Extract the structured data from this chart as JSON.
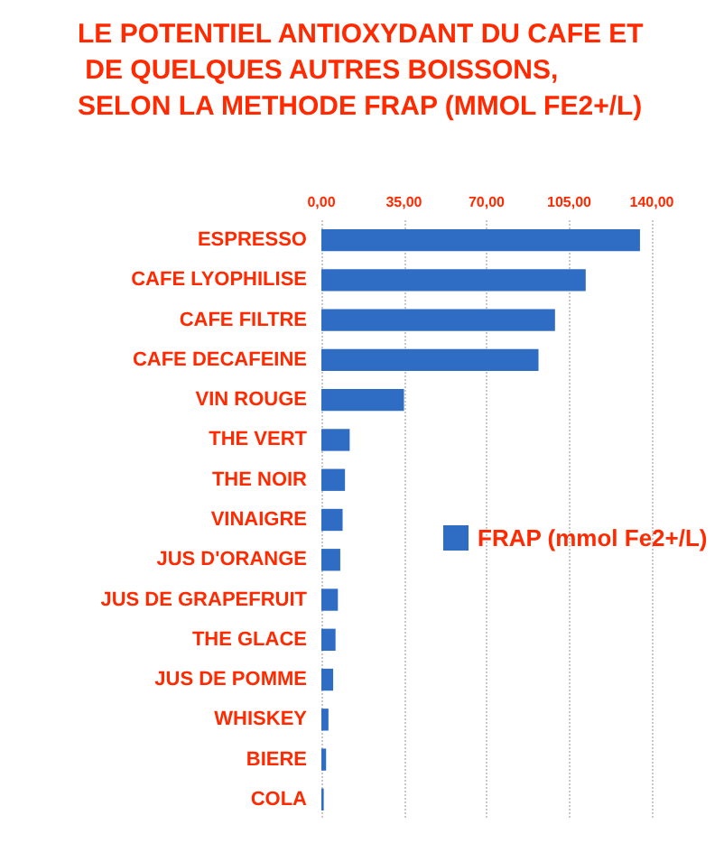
{
  "chart_data": {
    "type": "bar",
    "orientation": "horizontal",
    "title": "LE POTENTIEL ANTIOXYDANT DU CAFE ET DE QUELQUES AUTRES BOISSONS, SELON LA METHODE FRAP (MMOL FE2+/L)",
    "categories": [
      "ESPRESSO",
      "CAFE LYOPHILISE",
      "CAFE FILTRE",
      "CAFE DECAFEINE",
      "VIN ROUGE",
      "THE VERT",
      "THE NOIR",
      "VINAIGRE",
      "JUS D'ORANGE",
      "JUS DE GRAPEFRUIT",
      "THE GLACE",
      "JUS DE POMME",
      "WHISKEY",
      "BIERE",
      "COLA"
    ],
    "series": [
      {
        "name": "FRAP (mmol Fe2+/L)",
        "color": "#2f6cc4",
        "values": [
          135,
          112,
          99,
          92,
          35,
          12,
          10,
          9,
          8,
          7,
          6,
          5,
          3,
          2,
          1
        ]
      }
    ],
    "xlim": [
      0,
      140
    ],
    "xticks": [
      {
        "value": 0,
        "label": "0,00"
      },
      {
        "value": 35,
        "label": "35,00"
      },
      {
        "value": 70,
        "label": "70,00"
      },
      {
        "value": 105,
        "label": "105,00"
      },
      {
        "value": 140,
        "label": "140,00"
      }
    ],
    "grid": "x",
    "legend": "right"
  }
}
